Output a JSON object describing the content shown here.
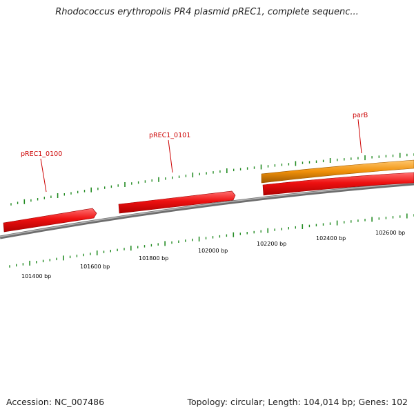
{
  "title": "Rhodococcus erythropolis PR4 plasmid pREC1, complete sequenc...",
  "accession": "Accession: NC_007486",
  "summary": "Topology: circular; Length: 104,014 bp; Genes: 102",
  "colors": {
    "backbone": "#8a8a8a",
    "gene_red": "#ee1111",
    "gene_red_light": "#ff6a6a",
    "gene_orange": "#f0900a",
    "gene_orange_light": "#ffc060",
    "gene_label": "#cc0000",
    "tick_green": "#228b22"
  },
  "genes": [
    {
      "label": "pREC1_0100",
      "color": "red"
    },
    {
      "label": "pREC1_0101",
      "color": "red"
    },
    {
      "label": "",
      "color": "red"
    },
    {
      "label": "parB",
      "color": "orange"
    }
  ],
  "tick_labels": [
    "101400 bp",
    "101600 bp",
    "101800 bp",
    "102000 bp",
    "102200 bp",
    "102400 bp",
    "102600 bp"
  ]
}
